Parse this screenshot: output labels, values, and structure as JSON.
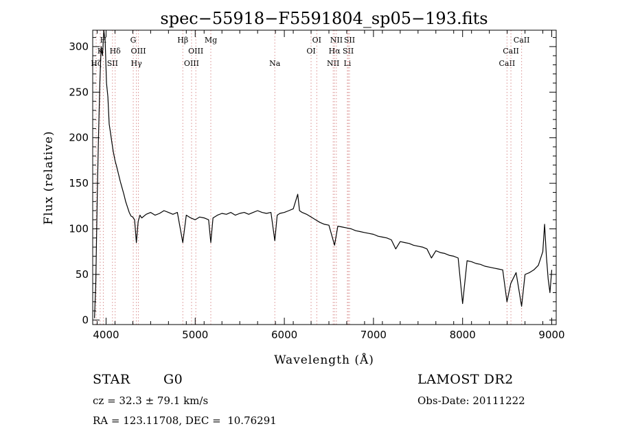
{
  "chart_data": {
    "type": "line",
    "title": "spec−55918−F5591804_sp05−193.fits",
    "xlabel": "Wavelength (Å)",
    "ylabel": "Flux (relative)",
    "xlim": [
      3850,
      9050
    ],
    "ylim": [
      -5,
      318
    ],
    "xticks": [
      4000,
      5000,
      6000,
      7000,
      8000,
      9000
    ],
    "yticks": [
      0,
      50,
      100,
      150,
      200,
      250,
      300
    ],
    "grid": false,
    "series": [
      {
        "color": "#000000",
        "points": [
          [
            3870,
            2
          ],
          [
            3885,
            40
          ],
          [
            3900,
            130
          ],
          [
            3915,
            200
          ],
          [
            3930,
            260
          ],
          [
            3945,
            300
          ],
          [
            3960,
            290
          ],
          [
            3975,
            318
          ],
          [
            3990,
            305
          ],
          [
            4005,
            260
          ],
          [
            4020,
            245
          ],
          [
            4035,
            215
          ],
          [
            4050,
            205
          ],
          [
            4065,
            195
          ],
          [
            4080,
            185
          ],
          [
            4100,
            175
          ],
          [
            4120,
            168
          ],
          [
            4140,
            160
          ],
          [
            4160,
            152
          ],
          [
            4180,
            145
          ],
          [
            4200,
            138
          ],
          [
            4220,
            130
          ],
          [
            4240,
            124
          ],
          [
            4260,
            118
          ],
          [
            4280,
            114
          ],
          [
            4300,
            113
          ],
          [
            4320,
            110
          ],
          [
            4340,
            85
          ],
          [
            4360,
            108
          ],
          [
            4380,
            115
          ],
          [
            4400,
            112
          ],
          [
            4450,
            116
          ],
          [
            4500,
            118
          ],
          [
            4550,
            115
          ],
          [
            4600,
            117
          ],
          [
            4650,
            120
          ],
          [
            4700,
            118
          ],
          [
            4750,
            116
          ],
          [
            4800,
            118
          ],
          [
            4861,
            85
          ],
          [
            4900,
            115
          ],
          [
            4950,
            112
          ],
          [
            5000,
            110
          ],
          [
            5050,
            113
          ],
          [
            5100,
            112
          ],
          [
            5150,
            110
          ],
          [
            5175,
            85
          ],
          [
            5200,
            112
          ],
          [
            5250,
            115
          ],
          [
            5300,
            117
          ],
          [
            5350,
            116
          ],
          [
            5400,
            118
          ],
          [
            5450,
            115
          ],
          [
            5500,
            117
          ],
          [
            5550,
            118
          ],
          [
            5600,
            116
          ],
          [
            5650,
            118
          ],
          [
            5700,
            120
          ],
          [
            5750,
            118
          ],
          [
            5800,
            117
          ],
          [
            5850,
            118
          ],
          [
            5893,
            87
          ],
          [
            5920,
            115
          ],
          [
            5950,
            117
          ],
          [
            6000,
            118
          ],
          [
            6050,
            120
          ],
          [
            6100,
            122
          ],
          [
            6150,
            138
          ],
          [
            6170,
            120
          ],
          [
            6200,
            118
          ],
          [
            6250,
            116
          ],
          [
            6300,
            113
          ],
          [
            6350,
            110
          ],
          [
            6400,
            107
          ],
          [
            6450,
            105
          ],
          [
            6500,
            104
          ],
          [
            6563,
            82
          ],
          [
            6600,
            103
          ],
          [
            6650,
            102
          ],
          [
            6700,
            101
          ],
          [
            6750,
            100
          ],
          [
            6800,
            98
          ],
          [
            6850,
            97
          ],
          [
            6900,
            96
          ],
          [
            6950,
            95
          ],
          [
            7000,
            94
          ],
          [
            7050,
            92
          ],
          [
            7100,
            91
          ],
          [
            7150,
            90
          ],
          [
            7200,
            88
          ],
          [
            7250,
            78
          ],
          [
            7300,
            86
          ],
          [
            7350,
            85
          ],
          [
            7400,
            84
          ],
          [
            7450,
            82
          ],
          [
            7500,
            81
          ],
          [
            7550,
            80
          ],
          [
            7600,
            78
          ],
          [
            7650,
            68
          ],
          [
            7700,
            76
          ],
          [
            7750,
            74
          ],
          [
            7800,
            73
          ],
          [
            7850,
            71
          ],
          [
            7900,
            70
          ],
          [
            7950,
            68
          ],
          [
            8000,
            18
          ],
          [
            8050,
            65
          ],
          [
            8100,
            64
          ],
          [
            8150,
            62
          ],
          [
            8200,
            61
          ],
          [
            8250,
            59
          ],
          [
            8300,
            58
          ],
          [
            8350,
            57
          ],
          [
            8400,
            56
          ],
          [
            8450,
            55
          ],
          [
            8498,
            20
          ],
          [
            8540,
            40
          ],
          [
            8600,
            52
          ],
          [
            8662,
            15
          ],
          [
            8700,
            50
          ],
          [
            8750,
            52
          ],
          [
            8800,
            55
          ],
          [
            8850,
            60
          ],
          [
            8900,
            75
          ],
          [
            8920,
            105
          ],
          [
            8940,
            70
          ],
          [
            8960,
            45
          ],
          [
            8980,
            30
          ],
          [
            9000,
            55
          ]
        ]
      }
    ],
    "line_markers": [
      {
        "wavelength": 3889,
        "label": "Hζ",
        "row": 3
      },
      {
        "wavelength": 3934,
        "label": "K",
        "row": 2
      },
      {
        "wavelength": 3969,
        "label": "H",
        "row": 1
      },
      {
        "wavelength": 4072,
        "label": "SII",
        "row": 3
      },
      {
        "wavelength": 4102,
        "label": "Hδ",
        "row": 2
      },
      {
        "wavelength": 4305,
        "label": "G",
        "row": 1
      },
      {
        "wavelength": 4340,
        "label": "Hγ",
        "row": 3
      },
      {
        "wavelength": 4363,
        "label": "OIII",
        "row": 2
      },
      {
        "wavelength": 4861,
        "label": "Hβ",
        "row": 1
      },
      {
        "wavelength": 4959,
        "label": "OIII",
        "row": 3
      },
      {
        "wavelength": 5007,
        "label": "OIII",
        "row": 2
      },
      {
        "wavelength": 5175,
        "label": "Mg",
        "row": 1
      },
      {
        "wavelength": 5893,
        "label": "Na",
        "row": 3
      },
      {
        "wavelength": 6300,
        "label": "OI",
        "row": 2
      },
      {
        "wavelength": 6364,
        "label": "OI",
        "row": 1
      },
      {
        "wavelength": 6548,
        "label": "NII",
        "row": 3
      },
      {
        "wavelength": 6563,
        "label": "Hα",
        "row": 2
      },
      {
        "wavelength": 6584,
        "label": "NII",
        "row": 1
      },
      {
        "wavelength": 6707,
        "label": "Li",
        "row": 3
      },
      {
        "wavelength": 6717,
        "label": "SII",
        "row": 2
      },
      {
        "wavelength": 6731,
        "label": "SII",
        "row": 1
      },
      {
        "wavelength": 8498,
        "label": "CaII",
        "row": 3
      },
      {
        "wavelength": 8542,
        "label": "CaII",
        "row": 2
      },
      {
        "wavelength": 8662,
        "label": "CaII",
        "row": 1
      }
    ],
    "marker_color": "#d98c8c"
  },
  "info": {
    "class_label": "STAR",
    "subclass": "G0",
    "survey": "LAMOST DR2",
    "velocity": "cz = 32.3 ± 79.1 km/s",
    "obs_date": "Obs-Date: 20111222",
    "coords": "RA = 123.11708, DEC =  10.76291"
  }
}
